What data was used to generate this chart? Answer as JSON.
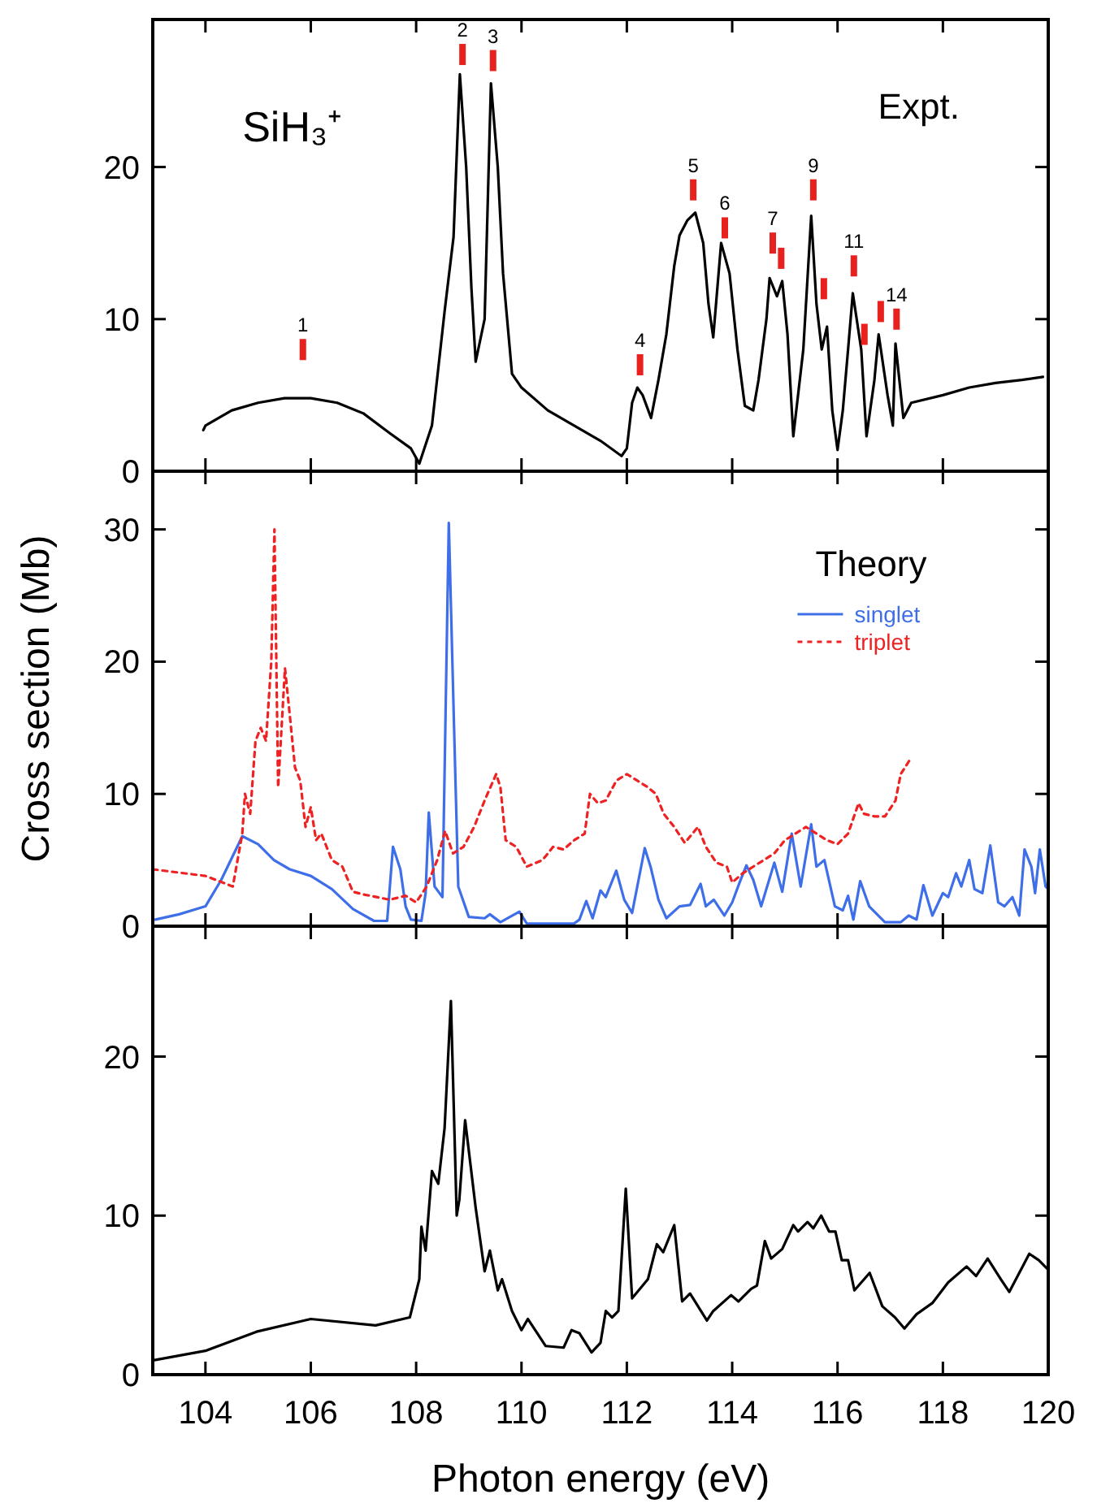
{
  "chart_data": [
    {
      "type": "line",
      "xlim": [
        103,
        120
      ],
      "xticks": [
        104,
        106,
        108,
        110,
        112,
        114,
        116,
        118,
        120
      ],
      "ylim": [
        0,
        29.7
      ],
      "yticks": [
        0,
        10,
        20
      ],
      "tick_labels": "y",
      "series": [
        {
          "type": "line",
          "color": "#000000",
          "x": [
            103.96,
            104.0,
            104.5,
            105.0,
            105.5,
            106.0,
            106.5,
            107.0,
            107.5,
            107.9,
            108.06,
            108.3,
            108.54,
            108.71,
            108.83,
            108.95,
            109.05,
            109.13,
            109.3,
            109.42,
            109.55,
            109.65,
            109.82,
            110.0,
            110.5,
            111.0,
            111.5,
            111.9,
            112.0,
            112.1,
            112.2,
            112.3,
            112.46,
            112.6,
            112.75,
            112.9,
            113.0,
            113.15,
            113.3,
            113.45,
            113.55,
            113.64,
            113.79,
            113.95,
            114.1,
            114.24,
            114.4,
            114.5,
            114.65,
            114.71,
            114.85,
            114.95,
            115.05,
            115.16,
            115.35,
            115.5,
            115.6,
            115.7,
            115.8,
            115.9,
            116.0,
            116.1,
            116.2,
            116.29,
            116.45,
            116.55,
            116.7,
            116.78,
            116.95,
            117.05,
            117.1,
            117.25,
            117.4,
            118.0,
            118.5,
            119.0,
            119.5,
            119.9
          ],
          "values": [
            2.7,
            3.0,
            4.0,
            4.5,
            4.8,
            4.8,
            4.5,
            3.8,
            2.5,
            1.5,
            0.5,
            3,
            10.5,
            15.4,
            26.1,
            20,
            12,
            7.2,
            10,
            25.5,
            20,
            13,
            6.4,
            5.5,
            4.0,
            3.0,
            2.0,
            1.0,
            1.5,
            4.5,
            5.5,
            5,
            3.5,
            6,
            9,
            13.5,
            15.5,
            16.5,
            17,
            15,
            11,
            8.8,
            15,
            13,
            8,
            4.3,
            4,
            6,
            10,
            12.7,
            11.5,
            12.5,
            9,
            2.3,
            8,
            16.8,
            11,
            8,
            9.5,
            4,
            1.4,
            4,
            8,
            11.7,
            8,
            2.3,
            6,
            9.0,
            5,
            3,
            8.4,
            3.5,
            4.5,
            5,
            5.5,
            5.8,
            6,
            6.2
          ]
        },
        {
          "type": "scatter",
          "color": "#e8201e",
          "x": [
            105.85,
            108.88,
            109.46,
            112.25,
            113.26,
            113.86,
            114.77,
            114.93,
            115.54,
            115.74,
            116.31,
            116.51,
            116.82,
            117.12
          ],
          "values": [
            8.0,
            27.4,
            27.0,
            7.0,
            18.5,
            16.0,
            15.0,
            14.0,
            18.5,
            12.0,
            13.5,
            9.0,
            10.5,
            10.0
          ]
        }
      ],
      "annotations": [
        "SiH₃⁺",
        "Expt.",
        {
          "text": "1",
          "x": 105.85,
          "y": 8.0
        },
        {
          "text": "2",
          "x": 108.88,
          "y": 27.4
        },
        {
          "text": "3",
          "x": 109.46,
          "y": 27.0
        },
        {
          "text": "4",
          "x": 112.25,
          "y": 7.0
        },
        {
          "text": "5",
          "x": 113.26,
          "y": 18.5
        },
        {
          "text": "6",
          "x": 113.86,
          "y": 16.0
        },
        {
          "text": "7",
          "x": 114.77,
          "y": 15.0
        },
        {
          "text": "9",
          "x": 115.54,
          "y": 18.5
        },
        {
          "text": "11",
          "x": 116.31,
          "y": 13.5
        },
        {
          "text": "14",
          "x": 117.12,
          "y": 10.0
        }
      ]
    },
    {
      "type": "line",
      "xlim": [
        103,
        120
      ],
      "xticks": [
        104,
        106,
        108,
        110,
        112,
        114,
        116,
        118,
        120
      ],
      "ylim": [
        0,
        34.4
      ],
      "yticks": [
        0,
        10,
        20,
        30
      ],
      "tick_labels": "y",
      "ylabel": "Cross section (Mb)",
      "legend": "top right",
      "series": [
        {
          "type": "line",
          "name": "singlet",
          "color": "#3f6fe8",
          "line_style": "solid",
          "x": [
            103.05,
            103.5,
            104.0,
            104.3,
            104.7,
            105.0,
            105.3,
            105.6,
            106.0,
            106.4,
            106.8,
            107.2,
            107.45,
            107.56,
            107.7,
            107.8,
            107.9,
            108.1,
            108.18,
            108.24,
            108.35,
            108.5,
            108.62,
            108.72,
            108.8,
            109.0,
            109.3,
            109.4,
            109.6,
            109.96,
            110.1,
            111.0,
            111.1,
            111.23,
            111.35,
            111.5,
            111.6,
            111.8,
            111.95,
            112.1,
            112.34,
            112.45,
            112.6,
            112.75,
            113.0,
            113.2,
            113.4,
            113.5,
            113.65,
            113.85,
            114.0,
            114.15,
            114.27,
            114.4,
            114.55,
            114.8,
            114.95,
            115.13,
            115.3,
            115.5,
            115.6,
            115.75,
            115.95,
            116.1,
            116.2,
            116.3,
            116.43,
            116.6,
            116.9,
            117.2,
            117.35,
            117.5,
            117.63,
            117.8,
            118.0,
            118.1,
            118.25,
            118.35,
            118.5,
            118.6,
            118.75,
            118.9,
            119.05,
            119.17,
            119.32,
            119.45,
            119.55,
            119.68,
            119.75,
            119.84,
            119.95,
            120.0
          ],
          "values": [
            0.5,
            0.9,
            1.5,
            3.5,
            6.8,
            6.2,
            5.0,
            4.3,
            3.8,
            2.8,
            1.3,
            0.4,
            0.4,
            6.0,
            4.3,
            1.5,
            0.5,
            0.4,
            2.5,
            8.6,
            3,
            2.2,
            30.5,
            15,
            3,
            0.7,
            0.6,
            0.9,
            0.3,
            1.1,
            0.2,
            0.2,
            0.5,
            1.9,
            0.6,
            2.7,
            2.2,
            4.2,
            2.0,
            1.0,
            5.9,
            4.5,
            2.0,
            0.6,
            1.5,
            1.6,
            3.2,
            1.5,
            2.0,
            0.8,
            1.8,
            3.4,
            4.6,
            3.5,
            1.5,
            4.8,
            2.6,
            7.0,
            3.0,
            7.7,
            4.5,
            5.0,
            1.5,
            1.2,
            2.3,
            0.5,
            3.4,
            1.5,
            0.3,
            0.3,
            0.8,
            0.5,
            3.1,
            0.8,
            2.5,
            2.2,
            4.0,
            3.0,
            5.0,
            2.8,
            2.5,
            6.1,
            1.8,
            1.5,
            2.2,
            0.8,
            5.8,
            4.5,
            2.5,
            5.8,
            3.0,
            2.8
          ]
        },
        {
          "type": "line",
          "name": "triplet",
          "color": "#ee2222",
          "line_style": "dotted",
          "x": [
            103.0,
            104.0,
            104.52,
            104.7,
            104.75,
            104.85,
            104.95,
            105.05,
            105.15,
            105.25,
            105.31,
            105.38,
            105.51,
            105.6,
            105.7,
            105.8,
            105.9,
            106.0,
            106.1,
            106.2,
            106.4,
            106.6,
            106.8,
            107.0,
            107.5,
            107.8,
            108.0,
            108.2,
            108.4,
            108.55,
            108.7,
            108.9,
            109.1,
            109.3,
            109.52,
            109.6,
            109.7,
            109.9,
            110.1,
            110.4,
            110.6,
            110.8,
            111.0,
            111.2,
            111.3,
            111.45,
            111.6,
            111.8,
            112.0,
            112.2,
            112.4,
            112.55,
            112.7,
            112.9,
            113.1,
            113.35,
            113.5,
            113.7,
            113.9,
            114.0,
            114.2,
            114.4,
            114.6,
            114.8,
            115.0,
            115.2,
            115.4,
            115.6,
            115.8,
            116.0,
            116.2,
            116.4,
            116.5,
            116.7,
            116.9,
            117.1,
            117.2,
            117.36
          ],
          "values": [
            4.3,
            3.8,
            3.0,
            7,
            10,
            8.5,
            14,
            15,
            14,
            20,
            30,
            10.5,
            19.5,
            16,
            12,
            11,
            7.5,
            9,
            6.5,
            7,
            5,
            4.5,
            2.6,
            2.4,
            2.0,
            2.3,
            1.8,
            3,
            5,
            7.2,
            5.5,
            6,
            7.5,
            9.5,
            11.5,
            10.5,
            6.5,
            6,
            4.5,
            5,
            6,
            5.8,
            6.5,
            7,
            10,
            9.3,
            9.5,
            11,
            11.5,
            11,
            10.5,
            10,
            8.5,
            7.5,
            6.3,
            7.5,
            6,
            4.8,
            4.5,
            3.3,
            4,
            4.5,
            5,
            5.5,
            6.5,
            7,
            7.5,
            7,
            6.5,
            6.2,
            7,
            9.3,
            8.5,
            8.3,
            8.3,
            9.5,
            11.5,
            12.5
          ]
        }
      ],
      "annotations": [
        "Theory"
      ]
    },
    {
      "type": "line",
      "xlim": [
        103,
        120
      ],
      "xticks": [
        104,
        106,
        108,
        110,
        112,
        114,
        116,
        118,
        120
      ],
      "ylim": [
        0,
        28.2
      ],
      "yticks": [
        0,
        10,
        20
      ],
      "xlabel": "Photon energy (eV)",
      "series": [
        {
          "type": "line",
          "color": "#000000",
          "x": [
            103.01,
            104.0,
            104.97,
            106.0,
            107.23,
            107.88,
            108.06,
            108.1,
            108.18,
            108.3,
            108.42,
            108.54,
            108.66,
            108.77,
            108.82,
            108.93,
            109.13,
            109.3,
            109.4,
            109.55,
            109.63,
            109.82,
            110.0,
            110.12,
            110.46,
            110.8,
            110.95,
            111.1,
            111.33,
            111.5,
            111.6,
            111.72,
            111.84,
            111.98,
            112.1,
            112.4,
            112.57,
            112.69,
            112.9,
            113.05,
            113.2,
            113.52,
            113.64,
            113.98,
            114.12,
            114.36,
            114.47,
            114.62,
            114.74,
            114.95,
            115.16,
            115.25,
            115.43,
            115.54,
            115.69,
            115.84,
            115.96,
            116.08,
            116.2,
            116.32,
            116.61,
            116.85,
            117.09,
            117.27,
            117.5,
            117.8,
            118.1,
            118.45,
            118.63,
            118.85,
            119.1,
            119.26,
            119.64,
            119.82,
            120.0
          ],
          "values": [
            0.9,
            1.5,
            2.7,
            3.5,
            3.1,
            3.6,
            6,
            9.3,
            7.8,
            12.8,
            12.0,
            15.5,
            23.5,
            10,
            11,
            16,
            10.5,
            6.5,
            7.8,
            5.3,
            6,
            4,
            2.8,
            3.5,
            1.8,
            1.7,
            2.8,
            2.6,
            1.4,
            2.0,
            4.0,
            3.6,
            4.0,
            11.7,
            4.8,
            6,
            8.2,
            7.7,
            9.4,
            4.6,
            5.1,
            3.4,
            4.0,
            5.0,
            4.6,
            5.4,
            5.6,
            8.4,
            7.3,
            7.9,
            9.4,
            9.0,
            9.6,
            9.2,
            10.0,
            9.0,
            9.0,
            7.2,
            7.2,
            5.3,
            6.4,
            4.3,
            3.6,
            2.9,
            3.8,
            4.5,
            5.8,
            6.8,
            6.2,
            7.3,
            6.0,
            5.2,
            7.6,
            7.2,
            6.6
          ]
        }
      ]
    }
  ]
}
